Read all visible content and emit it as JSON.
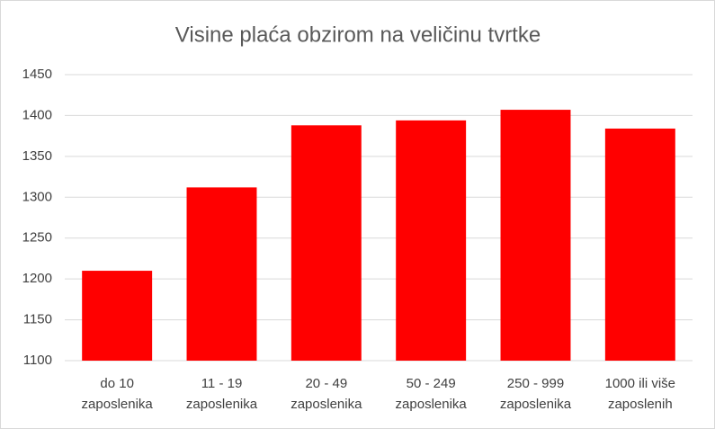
{
  "chart_data": {
    "type": "bar",
    "title": "Visine plaća obzirom na veličinu tvrtke",
    "categories": [
      "do 10\nzaposlenika",
      "11 - 19\nzaposlenika",
      "20 - 49\nzaposlenika",
      "50 - 249\nzaposlenika",
      "250 - 999\nzaposlenika",
      "1000 ili više\nzaposlenih"
    ],
    "values": [
      1210,
      1312,
      1388,
      1394,
      1407,
      1384
    ],
    "color": "#ff0000",
    "ylim": [
      1100,
      1450
    ],
    "yticks": [
      1100,
      1150,
      1200,
      1250,
      1300,
      1350,
      1400,
      1450
    ],
    "grid": true
  }
}
